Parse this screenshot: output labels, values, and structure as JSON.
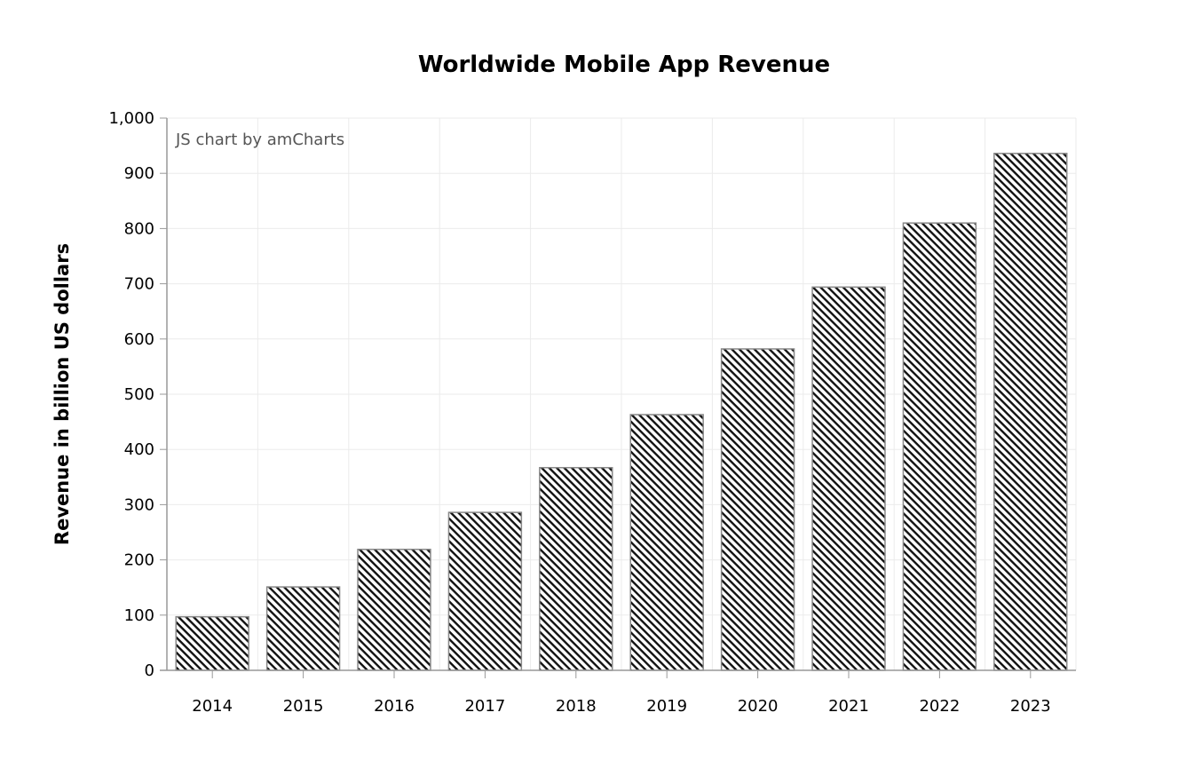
{
  "chart_data": {
    "type": "bar",
    "title": "Worldwide Mobile App Revenue",
    "xlabel": "",
    "ylabel": "Revenue in billion US dollars",
    "categories": [
      "2014",
      "2015",
      "2016",
      "2017",
      "2018",
      "2019",
      "2020",
      "2021",
      "2022",
      "2023"
    ],
    "values": [
      97,
      151,
      219,
      286,
      367,
      463,
      582,
      694,
      810,
      936
    ],
    "ylim": [
      0,
      1000
    ],
    "yticks": [
      "0",
      "100",
      "200",
      "300",
      "400",
      "500",
      "600",
      "700",
      "800",
      "900",
      "1,000"
    ],
    "grid": true,
    "bar_fill": "diagonal hatch",
    "bar_color": "#000000",
    "bar_border": "#888888",
    "credit": "JS chart by amCharts"
  }
}
